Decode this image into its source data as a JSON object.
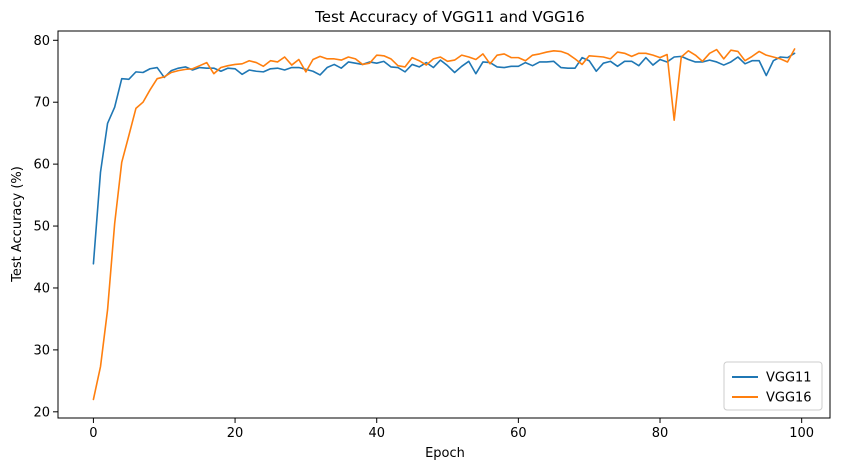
{
  "chart_data": {
    "type": "line",
    "title": "Test Accuracy of VGG11 and VGG16",
    "xlabel": "Epoch",
    "ylabel": "Test Accuracy (%)",
    "xlim": [
      -5,
      104
    ],
    "ylim": [
      19,
      81.5
    ],
    "xticks": [
      0,
      20,
      40,
      60,
      80,
      100
    ],
    "yticks": [
      20,
      30,
      40,
      50,
      60,
      70,
      80
    ],
    "grid": false,
    "legend_position": "lower-right",
    "x": [
      0,
      1,
      2,
      3,
      4,
      5,
      6,
      7,
      8,
      9,
      10,
      11,
      12,
      13,
      14,
      15,
      16,
      17,
      18,
      19,
      20,
      21,
      22,
      23,
      24,
      25,
      26,
      27,
      28,
      29,
      30,
      31,
      32,
      33,
      34,
      35,
      36,
      37,
      38,
      39,
      40,
      41,
      42,
      43,
      44,
      45,
      46,
      47,
      48,
      49,
      50,
      51,
      52,
      53,
      54,
      55,
      56,
      57,
      58,
      59,
      60,
      61,
      62,
      63,
      64,
      65,
      66,
      67,
      68,
      69,
      70,
      71,
      72,
      73,
      74,
      75,
      76,
      77,
      78,
      79,
      80,
      81,
      82,
      83,
      84,
      85,
      86,
      87,
      88,
      89,
      90,
      91,
      92,
      93,
      94,
      95,
      96,
      97,
      98,
      99
    ],
    "series": [
      {
        "name": "VGG11",
        "color": "#1f77b4",
        "values": [
          43.9,
          58.7,
          66.6,
          69.2,
          73.8,
          73.7,
          74.9,
          74.8,
          75.4,
          75.6,
          74.0,
          75.1,
          75.5,
          75.7,
          75.2,
          75.6,
          75.5,
          75.5,
          75.0,
          75.5,
          75.4,
          74.5,
          75.2,
          75.0,
          74.9,
          75.4,
          75.5,
          75.2,
          75.6,
          75.6,
          75.3,
          75.0,
          74.4,
          75.6,
          76.1,
          75.5,
          76.5,
          76.3,
          76.1,
          76.5,
          76.3,
          76.6,
          75.7,
          75.6,
          74.9,
          76.1,
          75.7,
          76.4,
          75.6,
          76.8,
          75.9,
          74.8,
          75.8,
          76.6,
          74.6,
          76.5,
          76.4,
          75.7,
          75.6,
          75.8,
          75.8,
          76.4,
          75.9,
          76.5,
          76.5,
          76.6,
          75.6,
          75.5,
          75.5,
          77.2,
          76.7,
          75.0,
          76.3,
          76.6,
          75.8,
          76.6,
          76.6,
          75.9,
          77.2,
          76.0,
          76.9,
          76.5,
          77.3,
          77.4,
          76.9,
          76.5,
          76.5,
          76.8,
          76.5,
          76.0,
          76.5,
          77.3,
          76.2,
          76.7,
          76.7,
          74.3,
          76.7,
          77.3,
          77.2,
          77.9
        ]
      },
      {
        "name": "VGG16",
        "color": "#ff7f0e",
        "values": [
          22.0,
          27.3,
          36.5,
          50.4,
          60.3,
          64.6,
          69.0,
          70.0,
          72.0,
          73.8,
          74.1,
          74.8,
          75.1,
          75.3,
          75.4,
          75.9,
          76.4,
          74.6,
          75.6,
          75.9,
          76.1,
          76.2,
          76.7,
          76.4,
          75.8,
          76.7,
          76.5,
          77.3,
          76.0,
          76.9,
          74.9,
          76.9,
          77.4,
          77.0,
          77.0,
          76.8,
          77.3,
          77.0,
          76.1,
          76.3,
          77.6,
          77.5,
          77.0,
          75.9,
          75.7,
          77.2,
          76.7,
          76.0,
          77.0,
          77.3,
          76.6,
          76.8,
          77.6,
          77.3,
          76.9,
          77.8,
          76.2,
          77.6,
          77.8,
          77.2,
          77.2,
          76.7,
          77.6,
          77.8,
          78.1,
          78.3,
          78.2,
          77.8,
          77.0,
          76.1,
          77.5,
          77.4,
          77.3,
          77.0,
          78.1,
          77.9,
          77.4,
          77.9,
          77.9,
          77.6,
          77.2,
          77.7,
          67.1,
          77.3,
          78.3,
          77.6,
          76.6,
          77.9,
          78.5,
          77.0,
          78.4,
          78.2,
          76.7,
          77.4,
          78.2,
          77.6,
          77.3,
          77.0,
          76.5,
          78.6
        ]
      }
    ]
  }
}
